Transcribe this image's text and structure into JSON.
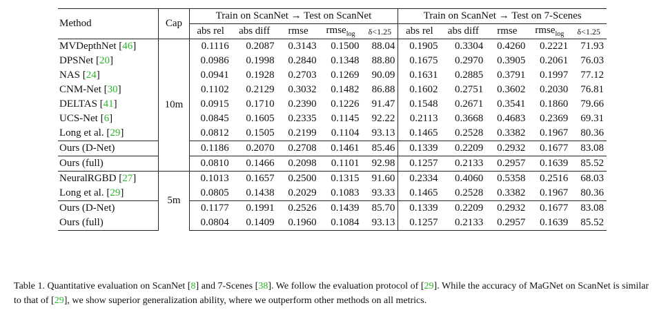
{
  "header": {
    "method": "Method",
    "cap": "Cap",
    "group1": "Train on ScanNet → Test on ScanNet",
    "group2": "Train on ScanNet → Test on 7-Scenes",
    "metrics": [
      "abs rel",
      "abs diff",
      "rmse",
      "rmse",
      "δ<1.25"
    ],
    "log_sub": "log"
  },
  "blocks": [
    {
      "cap": "10m",
      "groups": [
        [
          {
            "name": "MVDepthNet",
            "cite": "46",
            "values": [
              "0.1116",
              "0.2087",
              "0.3143",
              "0.1500",
              "88.04",
              "0.1905",
              "0.3304",
              "0.4260",
              "0.2221",
              "71.93"
            ]
          },
          {
            "name": "DPSNet",
            "cite": "20",
            "values": [
              "0.0986",
              "0.1998",
              "0.2840",
              "0.1348",
              "88.80",
              "0.1675",
              "0.2970",
              "0.3905",
              "0.2061",
              "76.03"
            ]
          },
          {
            "name": "NAS",
            "cite": "24",
            "values": [
              "0.0941",
              "0.1928",
              "0.2703",
              "0.1269",
              "90.09",
              "0.1631",
              "0.2885",
              "0.3791",
              "0.1997",
              "77.12"
            ]
          },
          {
            "name": "CNM-Net",
            "cite": "30",
            "values": [
              "0.1102",
              "0.2129",
              "0.3032",
              "0.1482",
              "86.88",
              "0.1602",
              "0.2751",
              "0.3602",
              "0.2030",
              "76.81"
            ]
          },
          {
            "name": "DELTAS",
            "cite": "41",
            "values": [
              "0.0915",
              "0.1710",
              "0.2390",
              "0.1226",
              "91.47",
              "0.1548",
              "0.2671",
              "0.3541",
              "0.1860",
              "79.66"
            ]
          },
          {
            "name": "UCS-Net",
            "cite": "6",
            "values": [
              "0.0845",
              "0.1605",
              "0.2335",
              "0.1145",
              "92.22",
              "0.2113",
              "0.3668",
              "0.4683",
              "0.2369",
              "69.31"
            ]
          },
          {
            "name": "Long et al.",
            "cite": "29",
            "values": [
              "0.0812",
              "0.1505",
              "0.2199",
              "0.1104",
              "93.13",
              "0.1465",
              "0.2528",
              "0.3382",
              "0.1967",
              "80.36"
            ],
            "bold": [
              4
            ]
          }
        ],
        [
          {
            "name": "Ours (D-Net)",
            "cite": "",
            "values": [
              "0.1186",
              "0.2070",
              "0.2708",
              "0.1461",
              "85.46",
              "0.1339",
              "0.2209",
              "0.2932",
              "0.1677",
              "83.08"
            ],
            "bold": [
              7
            ]
          }
        ],
        [
          {
            "name": "Ours (full)",
            "cite": "",
            "values": [
              "0.0810",
              "0.1466",
              "0.2098",
              "0.1101",
              "92.98",
              "0.1257",
              "0.2133",
              "0.2957",
              "0.1639",
              "85.52"
            ],
            "bold": [
              0,
              1,
              2,
              3,
              5,
              6,
              8,
              9
            ]
          }
        ]
      ]
    },
    {
      "cap": "5m",
      "groups": [
        [
          {
            "name": "NeuralRGBD",
            "cite": "27",
            "values": [
              "0.1013",
              "0.1657",
              "0.2500",
              "0.1315",
              "91.60",
              "0.2334",
              "0.4060",
              "0.5358",
              "0.2516",
              "68.03"
            ]
          },
          {
            "name": "Long et al.",
            "cite": "29",
            "values": [
              "0.0805",
              "0.1438",
              "0.2029",
              "0.1083",
              "93.33",
              "0.1465",
              "0.2528",
              "0.3382",
              "0.1967",
              "80.36"
            ],
            "bold": [
              3,
              4
            ]
          }
        ],
        [
          {
            "name": "Ours (D-Net)",
            "cite": "",
            "values": [
              "0.1177",
              "0.1991",
              "0.2526",
              "0.1439",
              "85.70",
              "0.1339",
              "0.2209",
              "0.2932",
              "0.1677",
              "83.08"
            ],
            "bold": [
              7
            ]
          },
          {
            "name": "Ours (full)",
            "cite": "",
            "values": [
              "0.0804",
              "0.1409",
              "0.1960",
              "0.1084",
              "93.13",
              "0.1257",
              "0.2133",
              "0.2957",
              "0.1639",
              "85.52"
            ],
            "bold": [
              0,
              1,
              2,
              5,
              6,
              8,
              9
            ]
          }
        ]
      ]
    }
  ],
  "caption": {
    "t1": "Table 1.  Quantitative evaluation on ScanNet [",
    "c1": "8",
    "t2": "] and 7-Scenes [",
    "c2": "38",
    "t3": "].  We follow the evaluation protocol of [",
    "c3": "29",
    "t4": "].  While the accuracy of MaGNet on ScanNet is similar to that of [",
    "c4": "29",
    "t5": "], we show superior generalization ability, where we outperform other methods on all metrics."
  }
}
